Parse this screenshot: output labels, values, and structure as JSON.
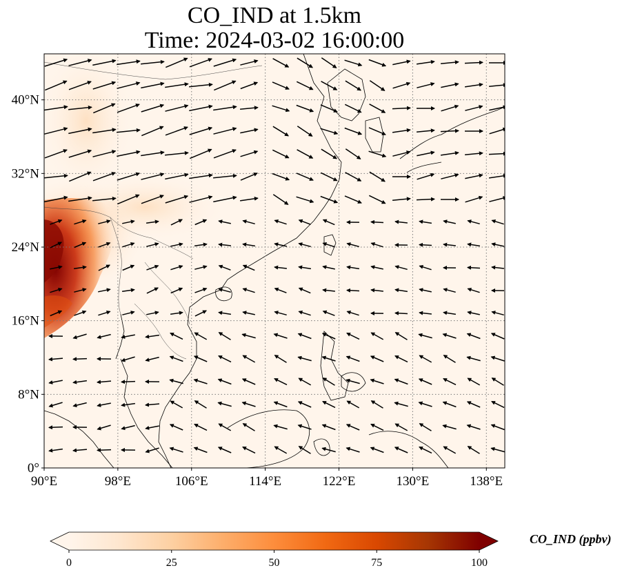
{
  "title": {
    "line1": "CO_IND at 1.5km",
    "line2": "Time: 2024-03-02 16:00:00"
  },
  "map": {
    "lon_range": [
      90,
      140
    ],
    "lat_range": [
      0,
      45
    ],
    "lon_ticks": [
      {
        "value": 90,
        "label": "90°E"
      },
      {
        "value": 98,
        "label": "98°E"
      },
      {
        "value": 106,
        "label": "106°E"
      },
      {
        "value": 114,
        "label": "114°E"
      },
      {
        "value": 122,
        "label": "122°E"
      },
      {
        "value": 130,
        "label": "130°E"
      },
      {
        "value": 138,
        "label": "138°E"
      }
    ],
    "lat_ticks": [
      {
        "value": 0,
        "label": "0°"
      },
      {
        "value": 8,
        "label": "8°N"
      },
      {
        "value": 16,
        "label": "16°N"
      },
      {
        "value": 24,
        "label": "24°N"
      },
      {
        "value": 32,
        "label": "32°N"
      },
      {
        "value": 40,
        "label": "40°N"
      }
    ],
    "gridlines": "dotted"
  },
  "colorbar": {
    "label": "CO_IND (ppbv)",
    "range": [
      0,
      100
    ],
    "ticks": [
      "0",
      "25",
      "50",
      "75",
      "100"
    ],
    "colors": [
      "#fff5eb",
      "#fee6ce",
      "#fdd0a2",
      "#fdae6b",
      "#fd8d3c",
      "#f16913",
      "#d94801",
      "#a63603",
      "#7f0000"
    ]
  }
}
